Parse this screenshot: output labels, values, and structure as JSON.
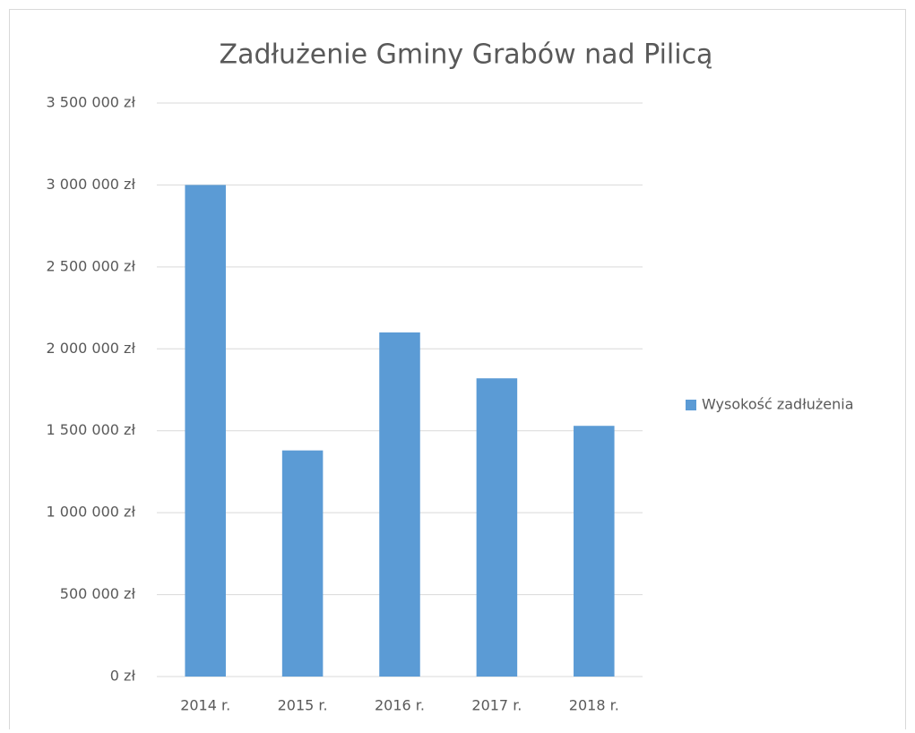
{
  "chart_data": {
    "type": "bar",
    "title": "Zadłużenie Gminy Grabów nad Pilicą",
    "categories": [
      "2014 r.",
      "2015 r.",
      "2016 r.",
      "2017 r.",
      "2018 r."
    ],
    "series": [
      {
        "name": "Wysokość zadłużenia",
        "color": "#5b9bd5",
        "values": [
          3000000,
          1380000,
          2100000,
          1820000,
          1530000
        ]
      }
    ],
    "ylim": [
      0,
      3500000
    ],
    "yticks": [
      {
        "value": 0,
        "label": "0 zł"
      },
      {
        "value": 500000,
        "label": "500 000 zł"
      },
      {
        "value": 1000000,
        "label": "1 000 000 zł"
      },
      {
        "value": 1500000,
        "label": "1 500 000 zł"
      },
      {
        "value": 2000000,
        "label": "2 000 000 zł"
      },
      {
        "value": 2500000,
        "label": "2 500 000 zł"
      },
      {
        "value": 3000000,
        "label": "3 000 000 zł"
      },
      {
        "value": 3500000,
        "label": "3 500 000 zł"
      }
    ],
    "grid": true,
    "legend": "right"
  }
}
